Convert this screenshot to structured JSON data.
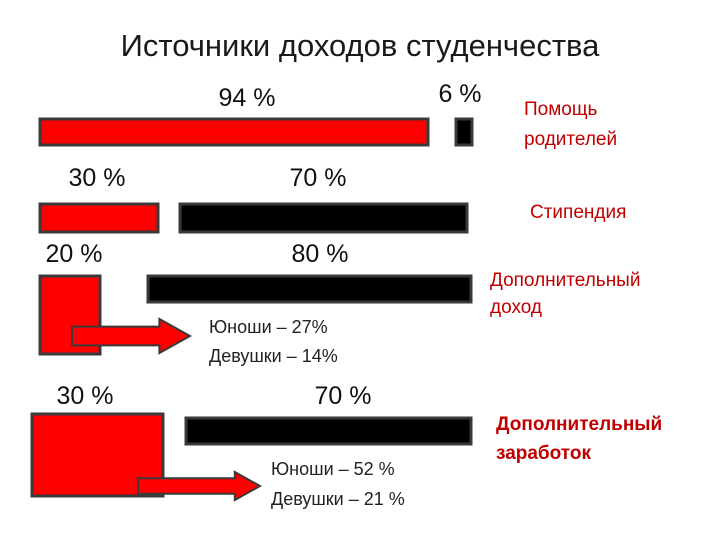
{
  "colors": {
    "red": "#ff0000",
    "black": "#000000",
    "stroke": "#3a3a3a",
    "label": "#c00000"
  },
  "chart_data": {
    "type": "bar",
    "title": "Источники доходов студенчества",
    "rows": [
      {
        "label": "Помощь родителей",
        "label_lines": [
          "Помощь",
          "родителей"
        ],
        "label_weight": "normal",
        "values": [
          94,
          6
        ],
        "value_labels": [
          "94 %",
          "6 %"
        ],
        "colors": [
          "red",
          "black"
        ]
      },
      {
        "label": "Стипендия",
        "label_lines": [
          "Стипендия"
        ],
        "label_weight": "normal",
        "values": [
          30,
          70
        ],
        "value_labels": [
          "30 %",
          "70 %"
        ],
        "colors": [
          "red",
          "black"
        ]
      },
      {
        "label": "Дополнительный доход",
        "label_lines": [
          "Дополнительный",
          "доход"
        ],
        "label_weight": "normal",
        "values": [
          20,
          80
        ],
        "value_labels": [
          "20 %",
          "80 %"
        ],
        "colors": [
          "red",
          "black"
        ],
        "breakdown": [
          "Юноши –  27%",
          "Девушки – 14%"
        ]
      },
      {
        "label": "Дополнительный заработок",
        "label_lines": [
          "Дополнительный",
          "заработок"
        ],
        "label_weight": "bold",
        "values": [
          30,
          70
        ],
        "value_labels": [
          "30 %",
          "70 %"
        ],
        "colors": [
          "red",
          "black"
        ],
        "breakdown": [
          "Юноши –  52 %",
          "Девушки – 21 %"
        ]
      }
    ]
  }
}
